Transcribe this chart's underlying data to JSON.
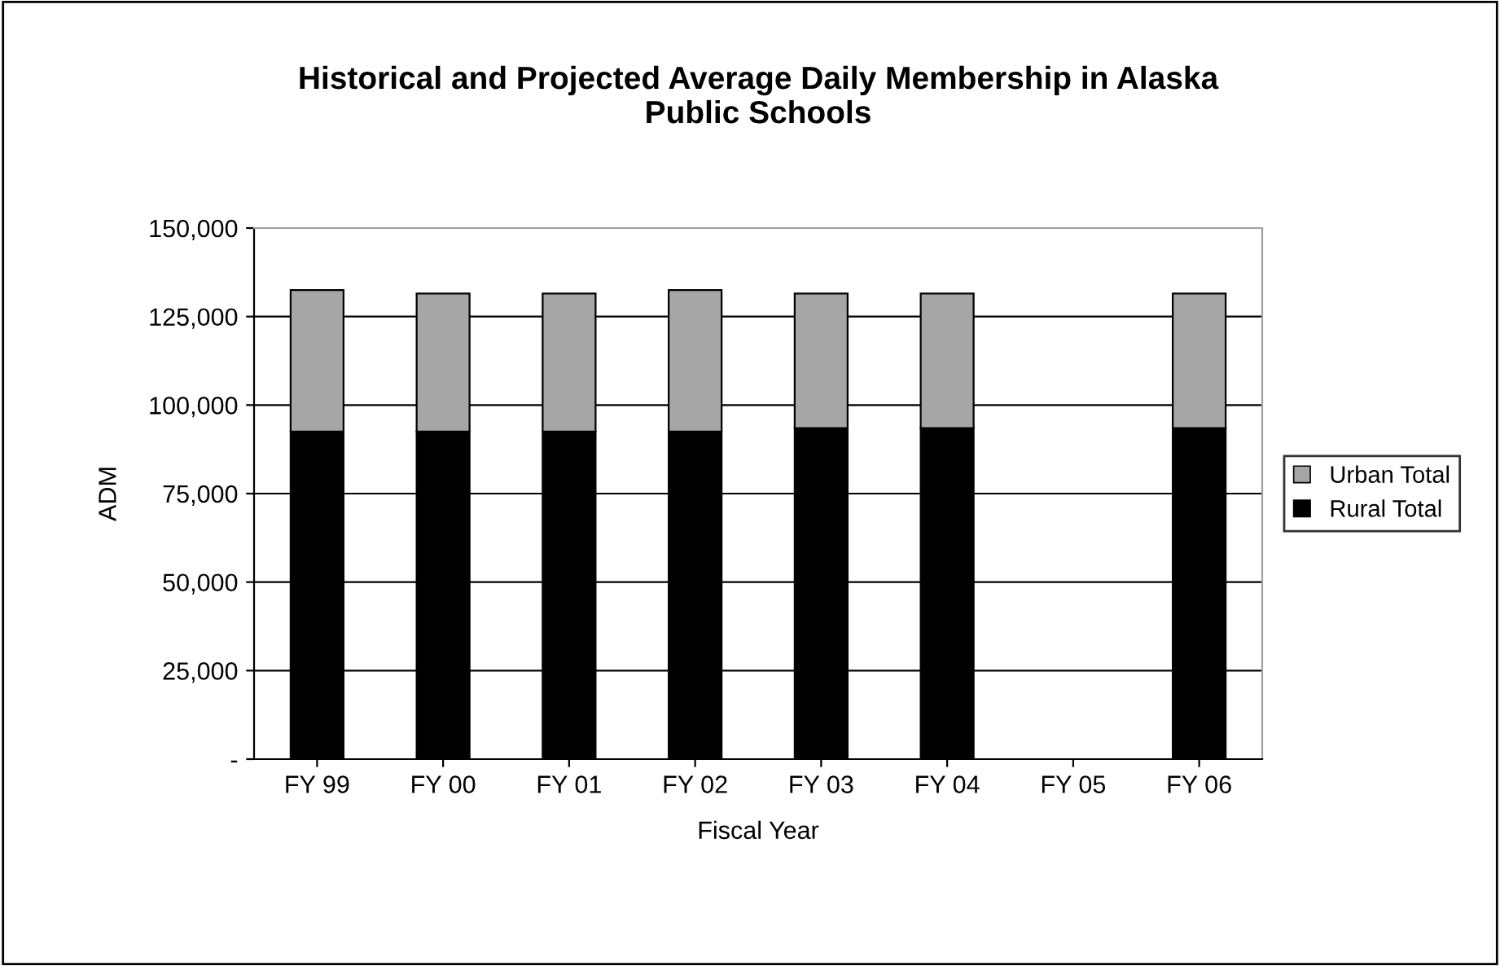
{
  "chart_data": {
    "type": "bar",
    "title": "Historical and Projected Average Daily Membership in Alaska\nPublic Schools",
    "xlabel": "Fiscal Year",
    "ylabel": "ADM",
    "categories": [
      "FY 99",
      "FY 00",
      "FY 01",
      "FY 02",
      "FY 03",
      "FY 04",
      "FY 05",
      "FY 06"
    ],
    "stacked": true,
    "series": [
      {
        "name": "Rural Total",
        "color": "#000000",
        "values": [
          92500,
          92500,
          92500,
          92500,
          93500,
          93500,
          null,
          93500
        ]
      },
      {
        "name": "Urban Total",
        "color": "#a6a6a6",
        "values": [
          40000,
          39000,
          39000,
          40000,
          38000,
          38000,
          null,
          38000
        ]
      }
    ],
    "ylim": [
      0,
      150000
    ],
    "yticks": [
      {
        "value": 0,
        "label": "-"
      },
      {
        "value": 25000,
        "label": "25,000"
      },
      {
        "value": 50000,
        "label": "50,000"
      },
      {
        "value": 75000,
        "label": "75,000"
      },
      {
        "value": 100000,
        "label": "100,000"
      },
      {
        "value": 125000,
        "label": "125,000"
      },
      {
        "value": 150000,
        "label": "150,000"
      }
    ],
    "grid": "y",
    "legend": "right"
  }
}
